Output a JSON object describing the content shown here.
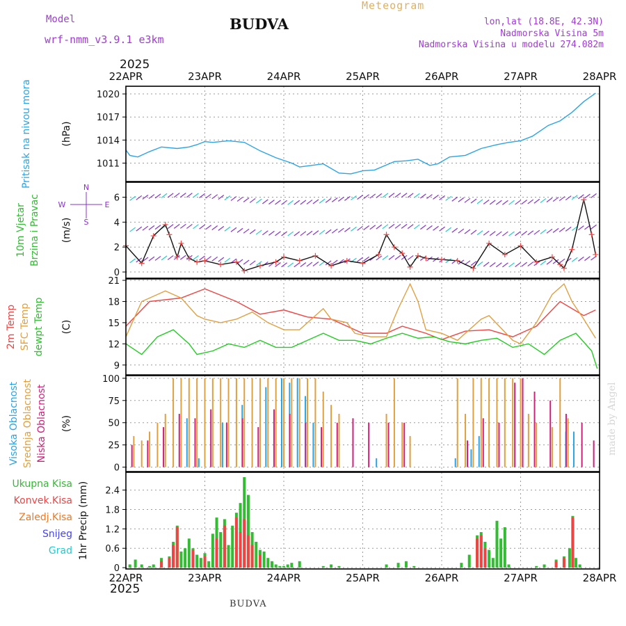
{
  "header": {
    "model_label": "Model",
    "model_name": "wrf-nmm_v3.9.1  e3km",
    "station": "BUDVA",
    "meteogram": "Meteogram",
    "lonlat": "lon,lat (18.8E, 42.3N)",
    "elevation": "Nadmorska Visina 5m",
    "model_elevation": "Nadmorska Visina u modelu 274.082m",
    "year_top": "2025",
    "year_bottom": "2025",
    "footer_station": "BUDVA",
    "watermark": "made by Angel"
  },
  "colors": {
    "pressure": "#2aa4e6",
    "temp2m": "#ee4444",
    "sfc": "#e0a040",
    "dewpt": "#22cc22",
    "high_cloud": "#2aa4e6",
    "mid_cloud": "#e0a040",
    "low_cloud": "#d0207a",
    "total_precip": "#33bb33",
    "conv_precip": "#ee4444",
    "frz_precip": "#ee7722",
    "snow": "#4444ee",
    "hail": "#22cccc",
    "wind_purple": "#8833cc"
  },
  "chart_data": {
    "type": "meteogram",
    "x_ticks": [
      "22APR",
      "23APR",
      "24APR",
      "25APR",
      "26APR",
      "27APR",
      "28APR"
    ],
    "panels": [
      {
        "type": "line",
        "id": "pressure",
        "ylabel": "(hPa)",
        "side_label": [
          "Pritisak na nivou mora"
        ],
        "ylim": [
          1008.6,
          1021.0
        ],
        "yticks": [
          1011,
          1014,
          1017,
          1020
        ],
        "series": [
          {
            "name": "Pritisak na nivou mora",
            "x": [
              0,
              0.05,
              0.15,
              0.3,
              0.45,
              0.65,
              0.8,
              0.9,
              1.0,
              1.1,
              1.3,
              1.5,
              1.7,
              1.9,
              2.1,
              2.2,
              2.35,
              2.5,
              2.7,
              2.85,
              3.0,
              3.15,
              3.4,
              3.55,
              3.7,
              3.85,
              3.95,
              4.1,
              4.3,
              4.5,
              4.7,
              4.85,
              5.0,
              5.15,
              5.35,
              5.5,
              5.65,
              5.8,
              5.95
            ],
            "values": [
              1012.7,
              1012.0,
              1011.8,
              1012.5,
              1013.1,
              1012.9,
              1013.1,
              1013.4,
              1013.8,
              1013.7,
              1013.9,
              1013.7,
              1012.6,
              1011.7,
              1011.0,
              1010.5,
              1010.7,
              1010.9,
              1009.7,
              1009.6,
              1010.0,
              1010.1,
              1011.2,
              1011.3,
              1011.5,
              1010.7,
              1010.9,
              1011.8,
              1012.0,
              1012.9,
              1013.4,
              1013.7,
              1013.9,
              1014.5,
              1015.9,
              1016.5,
              1017.6,
              1019.0,
              1020.1
            ]
          }
        ]
      },
      {
        "type": "line",
        "id": "wind",
        "ylabel": "(m/s)",
        "side_label": [
          "10m Vjetar",
          "Brzina i Pravac"
        ],
        "ylim": [
          -0.5,
          7.2
        ],
        "yticks": [
          0,
          2,
          4,
          6
        ],
        "compass": {
          "n": "N",
          "w": "W",
          "e": "E",
          "s": "S"
        },
        "series": [
          {
            "name": "Brzina vjetra",
            "x": [
              0,
              0.2,
              0.35,
              0.5,
              0.55,
              0.65,
              0.7,
              0.8,
              0.9,
              1.0,
              1.2,
              1.4,
              1.5,
              1.7,
              1.9,
              2.0,
              2.2,
              2.4,
              2.6,
              2.8,
              3.0,
              3.2,
              3.3,
              3.4,
              3.5,
              3.6,
              3.7,
              3.8,
              4.0,
              4.2,
              4.4,
              4.6,
              4.8,
              5.0,
              5.2,
              5.4,
              5.5,
              5.55,
              5.65,
              5.8,
              5.9,
              5.95
            ],
            "values": [
              2.1,
              0.7,
              2.9,
              3.8,
              3.0,
              1.2,
              2.3,
              1.1,
              0.8,
              0.9,
              0.6,
              0.8,
              0.1,
              0.5,
              0.8,
              1.2,
              0.9,
              1.3,
              0.5,
              0.9,
              0.7,
              1.4,
              3.0,
              2.0,
              1.5,
              0.4,
              1.3,
              1.1,
              1.0,
              0.9,
              0.3,
              2.3,
              1.4,
              2.1,
              0.8,
              1.2,
              0.6,
              0.3,
              1.8,
              5.8,
              3.0,
              1.4
            ]
          }
        ]
      },
      {
        "type": "line",
        "id": "temperature",
        "ylabel": "(C)",
        "side_label": [
          "2m Temp",
          "SFC Temp",
          "dewpt Temp"
        ],
        "ylim": [
          7.6,
          21.2
        ],
        "yticks": [
          9,
          12,
          15,
          18,
          21
        ],
        "series": [
          {
            "name": "2m Temp",
            "x": [
              0,
              0.3,
              0.7,
              1.0,
              1.4,
              1.7,
              2.0,
              2.3,
              2.6,
              2.8,
              3.0,
              3.3,
              3.5,
              3.8,
              4.0,
              4.3,
              4.6,
              4.9,
              5.2,
              5.5,
              5.8,
              5.95
            ],
            "values": [
              14.5,
              18,
              18.5,
              19.8,
              18,
              16.2,
              16.8,
              15.8,
              15.5,
              14.5,
              13.5,
              13.5,
              14.5,
              13.5,
              12.6,
              13.8,
              14,
              13,
              14.5,
              18,
              16,
              16.8
            ]
          },
          {
            "name": "SFC Temp",
            "x": [
              0,
              0.2,
              0.5,
              0.7,
              0.9,
              1.0,
              1.2,
              1.4,
              1.6,
              1.8,
              2.0,
              2.2,
              2.5,
              2.6,
              2.8,
              2.9,
              3.1,
              3.3,
              3.45,
              3.6,
              3.7,
              3.8,
              4.0,
              4.2,
              4.5,
              4.6,
              4.9,
              5.0,
              5.2,
              5.4,
              5.55,
              5.65,
              5.8,
              5.95
            ],
            "values": [
              13,
              18,
              19.5,
              18.5,
              16,
              15.5,
              15,
              15.5,
              16.5,
              15,
              14,
              14,
              17,
              15.5,
              15,
              13.5,
              13,
              13,
              17,
              20.5,
              18,
              14,
              13.5,
              12.5,
              15.5,
              16,
              12.5,
              12,
              15,
              19,
              20.5,
              18,
              15.5,
              12.8
            ]
          },
          {
            "name": "dewpt Temp",
            "x": [
              0,
              0.2,
              0.4,
              0.6,
              0.8,
              0.9,
              1.1,
              1.3,
              1.5,
              1.7,
              1.9,
              2.1,
              2.3,
              2.5,
              2.7,
              2.9,
              3.1,
              3.3,
              3.5,
              3.7,
              3.9,
              4.1,
              4.3,
              4.5,
              4.7,
              4.9,
              5.1,
              5.3,
              5.5,
              5.7,
              5.9,
              5.97
            ],
            "values": [
              12,
              10.5,
              13,
              14,
              12,
              10.5,
              11,
              12,
              11.5,
              12.5,
              11.5,
              11.5,
              12.5,
              13.5,
              12.5,
              12.5,
              12,
              12.8,
              13.5,
              12.8,
              13,
              12.3,
              12,
              12.5,
              12.8,
              11.5,
              12,
              10.5,
              12.5,
              13.5,
              11,
              8.5
            ]
          }
        ]
      },
      {
        "type": "bar",
        "id": "clouds",
        "ylabel": "(%)",
        "side_label": [
          "Visoka Oblacnost",
          "Srednja Oblacnost",
          "Niska Oblacnost"
        ],
        "ylim": [
          -5,
          103
        ],
        "yticks": [
          0,
          25,
          50,
          75,
          100
        ],
        "series": [
          {
            "name": "Visoka Oblacnost",
            "x": [
              0.8,
              0.95,
              1.25,
              1.5,
              1.8,
              2.0,
              2.1,
              2.2,
              2.3,
              2.4,
              3.2,
              4.2,
              4.4,
              4.5,
              5.6,
              5.7
            ],
            "values": [
              55,
              10,
              50,
              70,
              90,
              100,
              95,
              100,
              80,
              50,
              10,
              10,
              20,
              35,
              40,
              40
            ]
          },
          {
            "name": "Srednja Oblacnost",
            "x": [
              0.1,
              0.2,
              0.3,
              0.4,
              0.5,
              0.6,
              0.7,
              0.8,
              0.9,
              1.0,
              1.1,
              1.2,
              1.3,
              1.4,
              1.5,
              1.6,
              1.7,
              1.8,
              1.9,
              2.0,
              2.1,
              2.2,
              2.3,
              2.4,
              2.5,
              2.6,
              2.7,
              3.3,
              3.4,
              3.5,
              3.6,
              4.2,
              4.3,
              4.4,
              4.5,
              4.6,
              4.7,
              4.8,
              4.9,
              5.0,
              5.1,
              5.2,
              5.4,
              5.5,
              5.6
            ],
            "values": [
              35,
              30,
              40,
              50,
              60,
              100,
              100,
              100,
              100,
              100,
              100,
              100,
              100,
              100,
              100,
              100,
              100,
              100,
              100,
              100,
              100,
              100,
              100,
              100,
              85,
              70,
              60,
              60,
              100,
              50,
              35,
              100,
              60,
              100,
              100,
              100,
              100,
              100,
              100,
              100,
              60,
              50,
              45,
              100,
              55
            ]
          },
          {
            "name": "Niska Oblacnost",
            "x": [
              0.05,
              0.25,
              0.45,
              0.65,
              0.85,
              1.05,
              1.25,
              1.45,
              1.65,
              1.85,
              2.05,
              2.25,
              2.45,
              2.65,
              2.85,
              3.05,
              3.3,
              3.5,
              4.3,
              4.5,
              4.7,
              4.9,
              5.0,
              5.15,
              5.35,
              5.55,
              5.75,
              5.9
            ],
            "values": [
              25,
              30,
              45,
              60,
              55,
              65,
              50,
              55,
              45,
              65,
              60,
              50,
              45,
              50,
              55,
              50,
              50,
              50,
              30,
              55,
              50,
              95,
              100,
              85,
              75,
              60,
              50,
              30
            ]
          }
        ]
      },
      {
        "type": "bar",
        "id": "precip",
        "ylabel": "1hr Precip (mm)",
        "side_label": [
          "Ukupna Kisa",
          "Konvek.Kisa",
          "Zaledj.Kisa",
          "Snijeg",
          "Grad"
        ],
        "ylim": [
          -0.04,
          2.95
        ],
        "yticks": [
          0,
          0.6,
          1.2,
          1.8,
          2.4
        ],
        "series": [
          {
            "name": "Ukupna Kisa",
            "x": [
              0.05,
              0.12,
              0.2,
              0.3,
              0.35,
              0.45,
              0.55,
              0.6,
              0.65,
              0.7,
              0.75,
              0.8,
              0.85,
              0.9,
              0.95,
              1.0,
              1.05,
              1.1,
              1.15,
              1.2,
              1.25,
              1.3,
              1.35,
              1.4,
              1.45,
              1.5,
              1.55,
              1.6,
              1.65,
              1.7,
              1.75,
              1.8,
              1.85,
              1.9,
              1.95,
              2.0,
              2.05,
              2.1,
              2.2,
              2.5,
              2.6,
              2.7,
              3.3,
              3.45,
              3.55,
              3.65,
              4.25,
              4.35,
              4.45,
              4.5,
              4.55,
              4.6,
              4.65,
              4.7,
              4.75,
              4.8,
              4.85,
              5.2,
              5.3,
              5.45,
              5.55,
              5.62,
              5.66,
              5.7,
              5.75
            ],
            "values": [
              0.1,
              0.25,
              0.1,
              0.05,
              0.1,
              0.3,
              0.35,
              0.8,
              1.3,
              0.5,
              0.6,
              0.9,
              0.6,
              0.4,
              0.3,
              0.45,
              0.2,
              1.05,
              1.55,
              1.1,
              1.5,
              0.7,
              1.3,
              1.7,
              2.0,
              2.8,
              2.25,
              1.1,
              0.8,
              0.55,
              0.5,
              0.3,
              0.2,
              0.1,
              0.05,
              0.05,
              0.1,
              0.15,
              0.2,
              0.05,
              0.1,
              0.05,
              0.1,
              0.15,
              0.2,
              0.05,
              0.15,
              0.4,
              1.0,
              1.1,
              0.8,
              0.55,
              0.3,
              1.45,
              0.9,
              1.25,
              0.1,
              0.05,
              0.1,
              0.25,
              0.35,
              0.6,
              1.6,
              0.3,
              0.1
            ]
          },
          {
            "name": "Konvek.Kisa",
            "x": [
              0.45,
              0.55,
              0.6,
              0.65,
              0.85,
              1.0,
              1.15,
              1.25,
              1.4,
              1.45,
              1.5,
              1.55,
              1.6,
              1.7,
              4.45,
              4.5,
              4.55,
              5.45,
              5.55,
              5.66
            ],
            "values": [
              0.2,
              0.3,
              0.7,
              1.25,
              0.55,
              0.35,
              0.9,
              1.3,
              1.55,
              1.1,
              1.5,
              1.0,
              0.7,
              0.4,
              0.9,
              1.0,
              0.6,
              0.2,
              0.3,
              1.55
            ]
          },
          {
            "name": "Zaledj.Kisa",
            "x": [],
            "values": []
          },
          {
            "name": "Snijeg",
            "x": [],
            "values": []
          },
          {
            "name": "Grad",
            "x": [],
            "values": []
          }
        ]
      }
    ]
  }
}
